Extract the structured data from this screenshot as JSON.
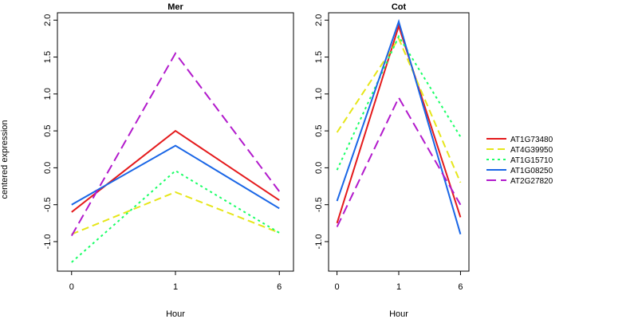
{
  "chart_data": {
    "type": "line",
    "ylabel": "centered expression",
    "xlabel": "Hour",
    "x": [
      "0",
      "1",
      "6"
    ],
    "ylim": [
      -1.4,
      2.1
    ],
    "yticks": [
      "-1.0",
      "-0.5",
      "0.0",
      "0.5",
      "1.0",
      "1.5",
      "2.0"
    ],
    "legend_position": "right",
    "panels": [
      {
        "title": "Mer",
        "series": [
          {
            "name": "AT1G73480",
            "values": [
              -0.6,
              0.5,
              -0.44
            ],
            "color": "#e41a1c",
            "dash": "solid"
          },
          {
            "name": "AT4G39950",
            "values": [
              -0.9,
              -0.33,
              -0.88
            ],
            "color": "#e6e619",
            "dash": "dashed"
          },
          {
            "name": "AT1G15710",
            "values": [
              -1.28,
              -0.04,
              -0.88
            ],
            "color": "#1aff66",
            "dash": "dotted"
          },
          {
            "name": "AT1G08250",
            "values": [
              -0.5,
              0.3,
              -0.55
            ],
            "color": "#1a66e6",
            "dash": "solid"
          },
          {
            "name": "AT2G27820",
            "values": [
              -0.92,
              1.55,
              -0.32
            ],
            "color": "#b21acc",
            "dash": "longdash"
          }
        ]
      },
      {
        "title": "Cot",
        "series": [
          {
            "name": "AT1G73480",
            "values": [
              -0.75,
              1.92,
              -0.67
            ],
            "color": "#e41a1c",
            "dash": "solid"
          },
          {
            "name": "AT4G39950",
            "values": [
              0.48,
              1.75,
              -0.2
            ],
            "color": "#e6e619",
            "dash": "dashed"
          },
          {
            "name": "AT1G15710",
            "values": [
              -0.03,
              1.78,
              0.42
            ],
            "color": "#1aff66",
            "dash": "dotted"
          },
          {
            "name": "AT1G08250",
            "values": [
              -0.45,
              1.98,
              -0.9
            ],
            "color": "#1a66e6",
            "dash": "solid"
          },
          {
            "name": "AT2G27820",
            "values": [
              -0.8,
              0.95,
              -0.5
            ],
            "color": "#b21acc",
            "dash": "longdash"
          }
        ]
      }
    ],
    "legend": [
      "AT1G73480",
      "AT4G39950",
      "AT1G15710",
      "AT1G08250",
      "AT2G27820"
    ]
  }
}
